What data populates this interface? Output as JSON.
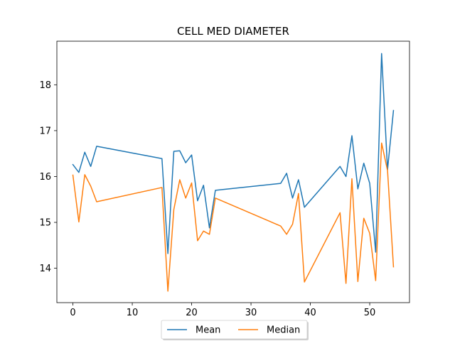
{
  "chart_data": {
    "type": "line",
    "title": "CELL MED DIAMETER",
    "xlabel": "",
    "ylabel": "",
    "xlim": [
      -2.7,
      56.7
    ],
    "ylim": [
      13.25,
      18.95
    ],
    "xticks": [
      0,
      10,
      20,
      30,
      40,
      50
    ],
    "yticks": [
      14,
      15,
      16,
      17,
      18
    ],
    "grid": false,
    "legend_position": "bottom-center",
    "series": [
      {
        "name": "Mean",
        "color": "#1f77b4",
        "x": [
          0,
          1,
          2,
          3,
          4,
          15,
          16,
          17,
          18,
          19,
          20,
          21,
          22,
          23,
          24,
          35,
          36,
          37,
          38,
          39,
          45,
          46,
          47,
          48,
          49,
          50,
          51,
          52,
          53,
          54
        ],
        "y": [
          16.26,
          16.09,
          16.53,
          16.22,
          16.66,
          16.39,
          14.32,
          16.55,
          16.56,
          16.3,
          16.47,
          15.47,
          15.81,
          14.88,
          15.7,
          15.85,
          16.07,
          15.53,
          15.93,
          15.33,
          16.22,
          16.0,
          16.89,
          15.73,
          16.29,
          15.85,
          14.35,
          18.68,
          16.15,
          17.44
        ]
      },
      {
        "name": "Median",
        "color": "#ff7f0e",
        "x": [
          0,
          1,
          2,
          3,
          4,
          15,
          16,
          17,
          18,
          19,
          20,
          21,
          22,
          23,
          24,
          35,
          36,
          37,
          38,
          39,
          45,
          46,
          47,
          48,
          49,
          50,
          51,
          52,
          53,
          54
        ],
        "y": [
          16.03,
          15.01,
          16.04,
          15.79,
          15.45,
          15.76,
          13.5,
          15.28,
          15.93,
          15.53,
          15.86,
          14.6,
          14.81,
          14.74,
          15.53,
          14.92,
          14.74,
          14.96,
          15.63,
          13.7,
          15.21,
          13.67,
          15.95,
          13.71,
          15.09,
          14.76,
          13.73,
          16.73,
          16.13,
          14.03
        ]
      }
    ]
  }
}
